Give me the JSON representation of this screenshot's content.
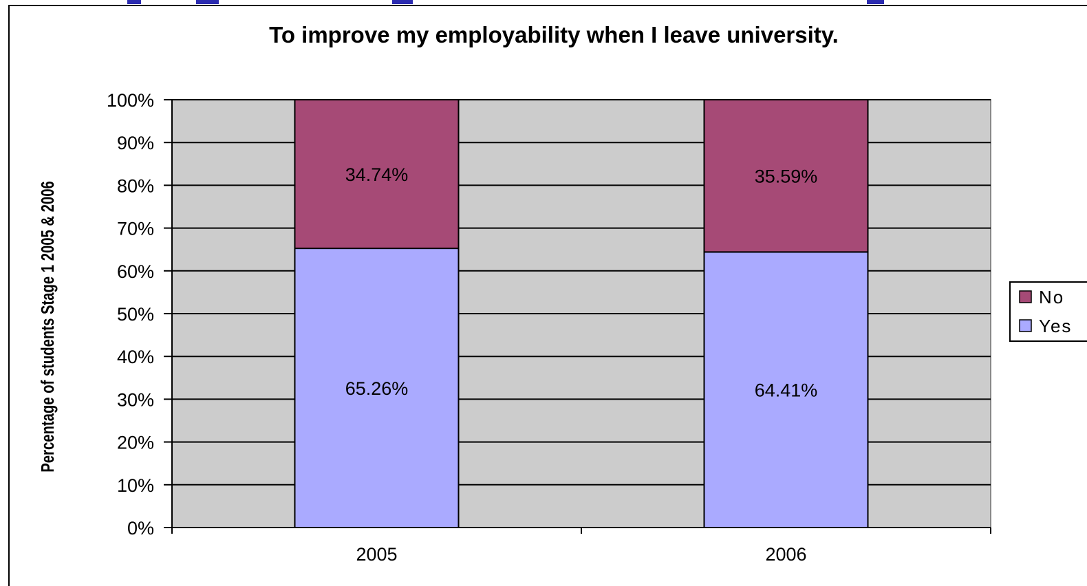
{
  "header_fragment_color": "#2b2bb0",
  "chart_data": {
    "type": "bar",
    "stacked": true,
    "percent_stacked": true,
    "title": "To improve my employability when I leave university.",
    "xlabel": "",
    "ylabel": "Percentage of students Stage 1 2005 & 2006",
    "categories": [
      "2005",
      "2006"
    ],
    "series": [
      {
        "name": "Yes",
        "values": [
          65.26,
          64.41
        ],
        "labels": [
          "65.26%",
          "64.41%"
        ],
        "color": "#aaaaff"
      },
      {
        "name": "No",
        "values": [
          34.74,
          35.59
        ],
        "labels": [
          "34.74%",
          "35.59%"
        ],
        "color": "#a64a76"
      }
    ],
    "ylim": [
      0,
      100
    ],
    "yticks": [
      "0%",
      "10%",
      "20%",
      "30%",
      "40%",
      "50%",
      "60%",
      "70%",
      "80%",
      "90%",
      "100%"
    ],
    "grid": true,
    "plot_background": "#cccccc",
    "legend": {
      "position": "right",
      "entries": [
        "No",
        "Yes"
      ]
    }
  }
}
